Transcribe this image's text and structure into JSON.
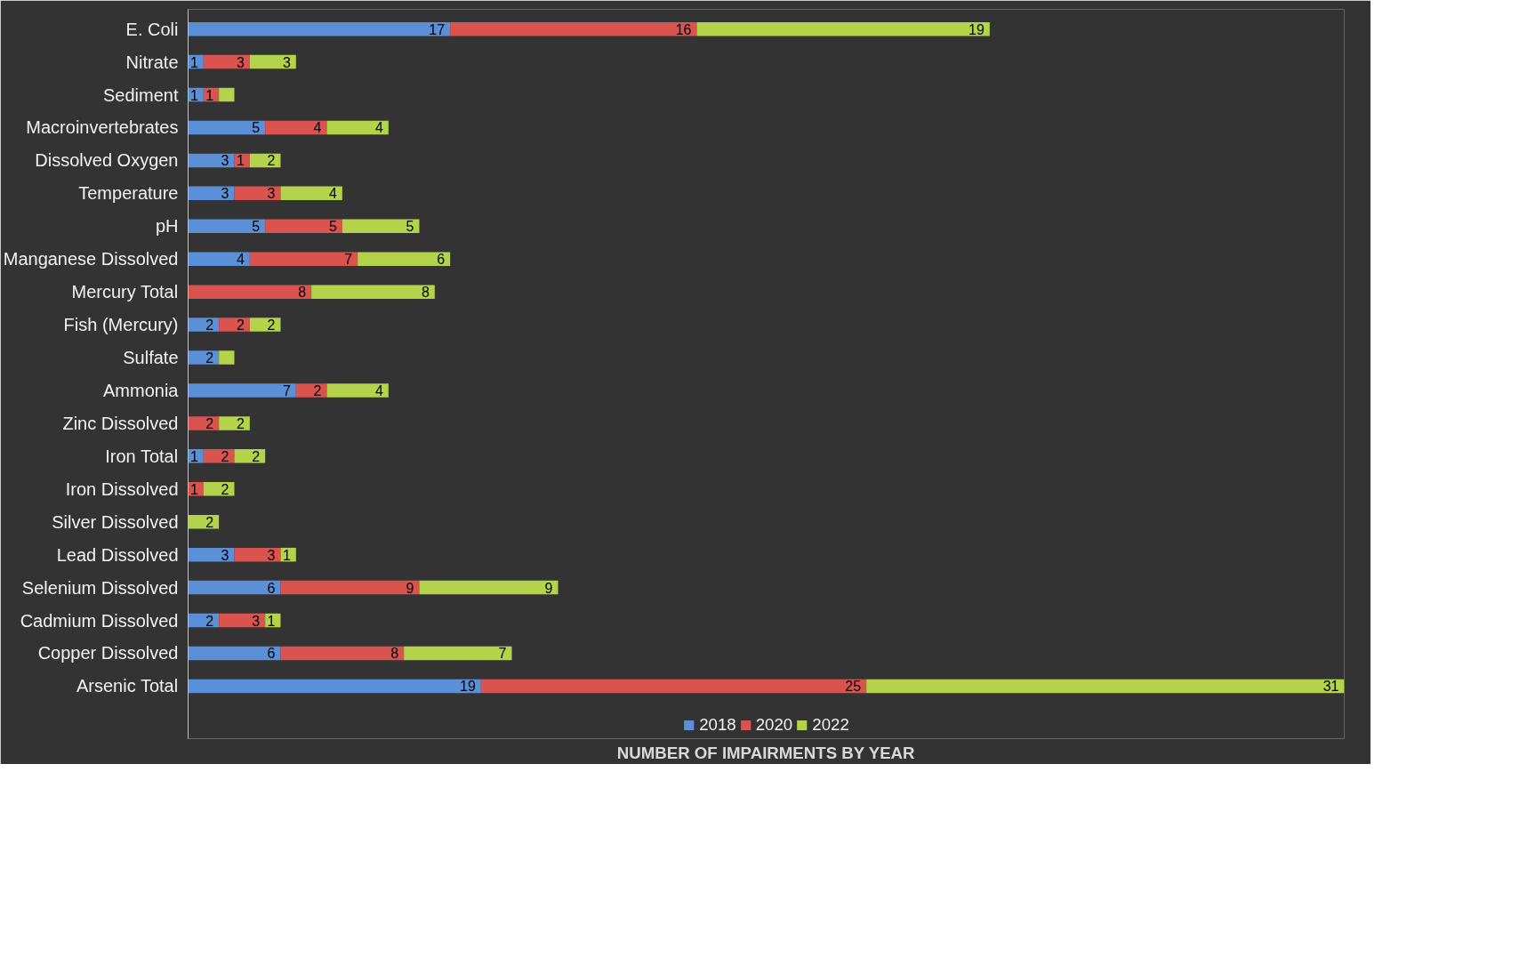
{
  "chart_data": {
    "type": "bar",
    "orientation": "horizontal",
    "stacked": true,
    "xlabel": "NUMBER OF IMPAIRMENTS BY YEAR",
    "legend": "bottom",
    "grid": false,
    "categories": [
      "E. Coli",
      "Nitrate",
      "Sediment",
      "Macroinvertebrates",
      "Dissolved Oxygen",
      "Temperature",
      "pH",
      "Manganese Dissolved",
      "Mercury Total",
      "Fish (Mercury)",
      "Sulfate",
      "Ammonia",
      "Zinc Dissolved",
      "Iron Total",
      "Iron Dissolved",
      "Silver Dissolved",
      "Lead Dissolved",
      "Selenium Dissolved",
      "Cadmium Dissolved",
      "Copper Dissolved",
      "Arsenic Total"
    ],
    "series": [
      {
        "name": "2018",
        "color": "#5b8fd6",
        "values": [
          17,
          1,
          1,
          5,
          3,
          3,
          5,
          4,
          0,
          2,
          2,
          7,
          0,
          1,
          0,
          0,
          3,
          6,
          2,
          6,
          19
        ],
        "value_labels": [
          "17",
          "1",
          "1",
          "5",
          "3",
          "3",
          "5",
          "4",
          null,
          "2",
          "2",
          "7",
          null,
          "1",
          null,
          null,
          "3",
          "6",
          "2",
          "6",
          "19"
        ]
      },
      {
        "name": "2020",
        "color": "#d9534f",
        "values": [
          16,
          3,
          1,
          4,
          1,
          3,
          5,
          7,
          8,
          2,
          0,
          2,
          2,
          2,
          1,
          0,
          3,
          9,
          3,
          8,
          25
        ],
        "value_labels": [
          "16",
          "3",
          "1",
          "4",
          "1",
          "3",
          "5",
          "7",
          "8",
          "2",
          null,
          "2",
          "2",
          "2",
          "1",
          null,
          "3",
          "9",
          "3",
          "8",
          "25"
        ]
      },
      {
        "name": "2022",
        "color": "#b5d34a",
        "values": [
          19,
          3,
          1,
          4,
          2,
          4,
          5,
          6,
          8,
          2,
          1,
          4,
          2,
          2,
          2,
          2,
          1,
          9,
          1,
          7,
          31
        ],
        "value_labels": [
          "19",
          "3",
          null,
          "4",
          "2",
          "4",
          "5",
          "6",
          "8",
          "2",
          null,
          "4",
          "2",
          "2",
          "2",
          "2",
          "1",
          "9",
          "1",
          "7",
          "31"
        ]
      }
    ]
  }
}
